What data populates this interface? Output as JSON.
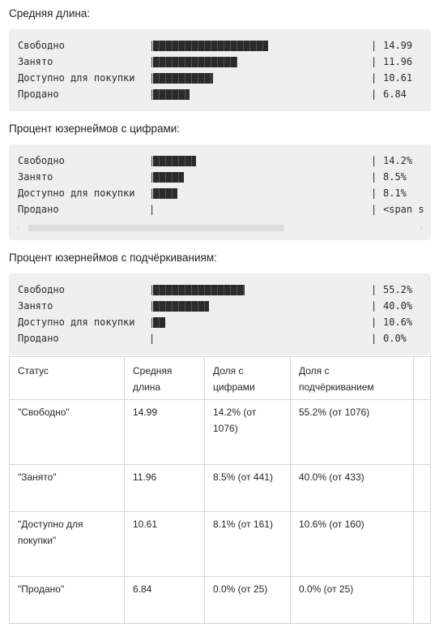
{
  "sections": [
    {
      "heading": "Средняя длина:",
      "rows": [
        {
          "label": "Свободно",
          "bar": 0.525,
          "value": "14.99"
        },
        {
          "label": "Занято",
          "bar": 0.385,
          "value": "11.96"
        },
        {
          "label": "Доступно для покупки",
          "bar": 0.275,
          "value": "10.61"
        },
        {
          "label": "Продано",
          "bar": 0.165,
          "value": "6.84"
        }
      ]
    },
    {
      "heading": "Процент юзернеймов с цифрами:",
      "rows": [
        {
          "label": "Свободно",
          "bar": 0.195,
          "value": "14.2%"
        },
        {
          "label": "Занято",
          "bar": 0.14,
          "value": "8.5%"
        },
        {
          "label": "Доступно для покупки",
          "bar": 0.11,
          "value": "8.1%"
        },
        {
          "label": "Продано",
          "bar": 0,
          "value": "<span s"
        }
      ]
    },
    {
      "heading": "Процент юзернеймов с подчёркиваниям:",
      "rows": [
        {
          "label": "Свободно",
          "bar": 0.42,
          "value": "55.2%"
        },
        {
          "label": "Занято",
          "bar": 0.255,
          "value": "40.0%"
        },
        {
          "label": "Доступно для покупки",
          "bar": 0.055,
          "value": "10.6%"
        },
        {
          "label": "Продано",
          "bar": 0,
          "value": "0.0%"
        }
      ]
    }
  ],
  "scrollbar": {
    "left_arrow": "‹",
    "right_arrow": "›"
  },
  "table": {
    "headers": [
      "Статус",
      "Средняя длина",
      "Доля с цифрами",
      "Доля с подчёркиванием",
      ""
    ],
    "rows": [
      [
        "\"Свободно\"",
        "14.99",
        "14.2% (от 1076)",
        "55.2% (от 1076)",
        ""
      ],
      [
        "\"Занято\"",
        "11.96",
        "8.5% (от 441)",
        "40.0% (от 433)",
        ""
      ],
      [
        "\"Доступно для покупки\"",
        "10.61",
        "8.1% (от 161)",
        "10.6% (от 160)",
        ""
      ],
      [
        "\"Продано\"",
        "6.84",
        "0.0% (от 25)",
        "0.0% (от 25)",
        ""
      ]
    ]
  }
}
